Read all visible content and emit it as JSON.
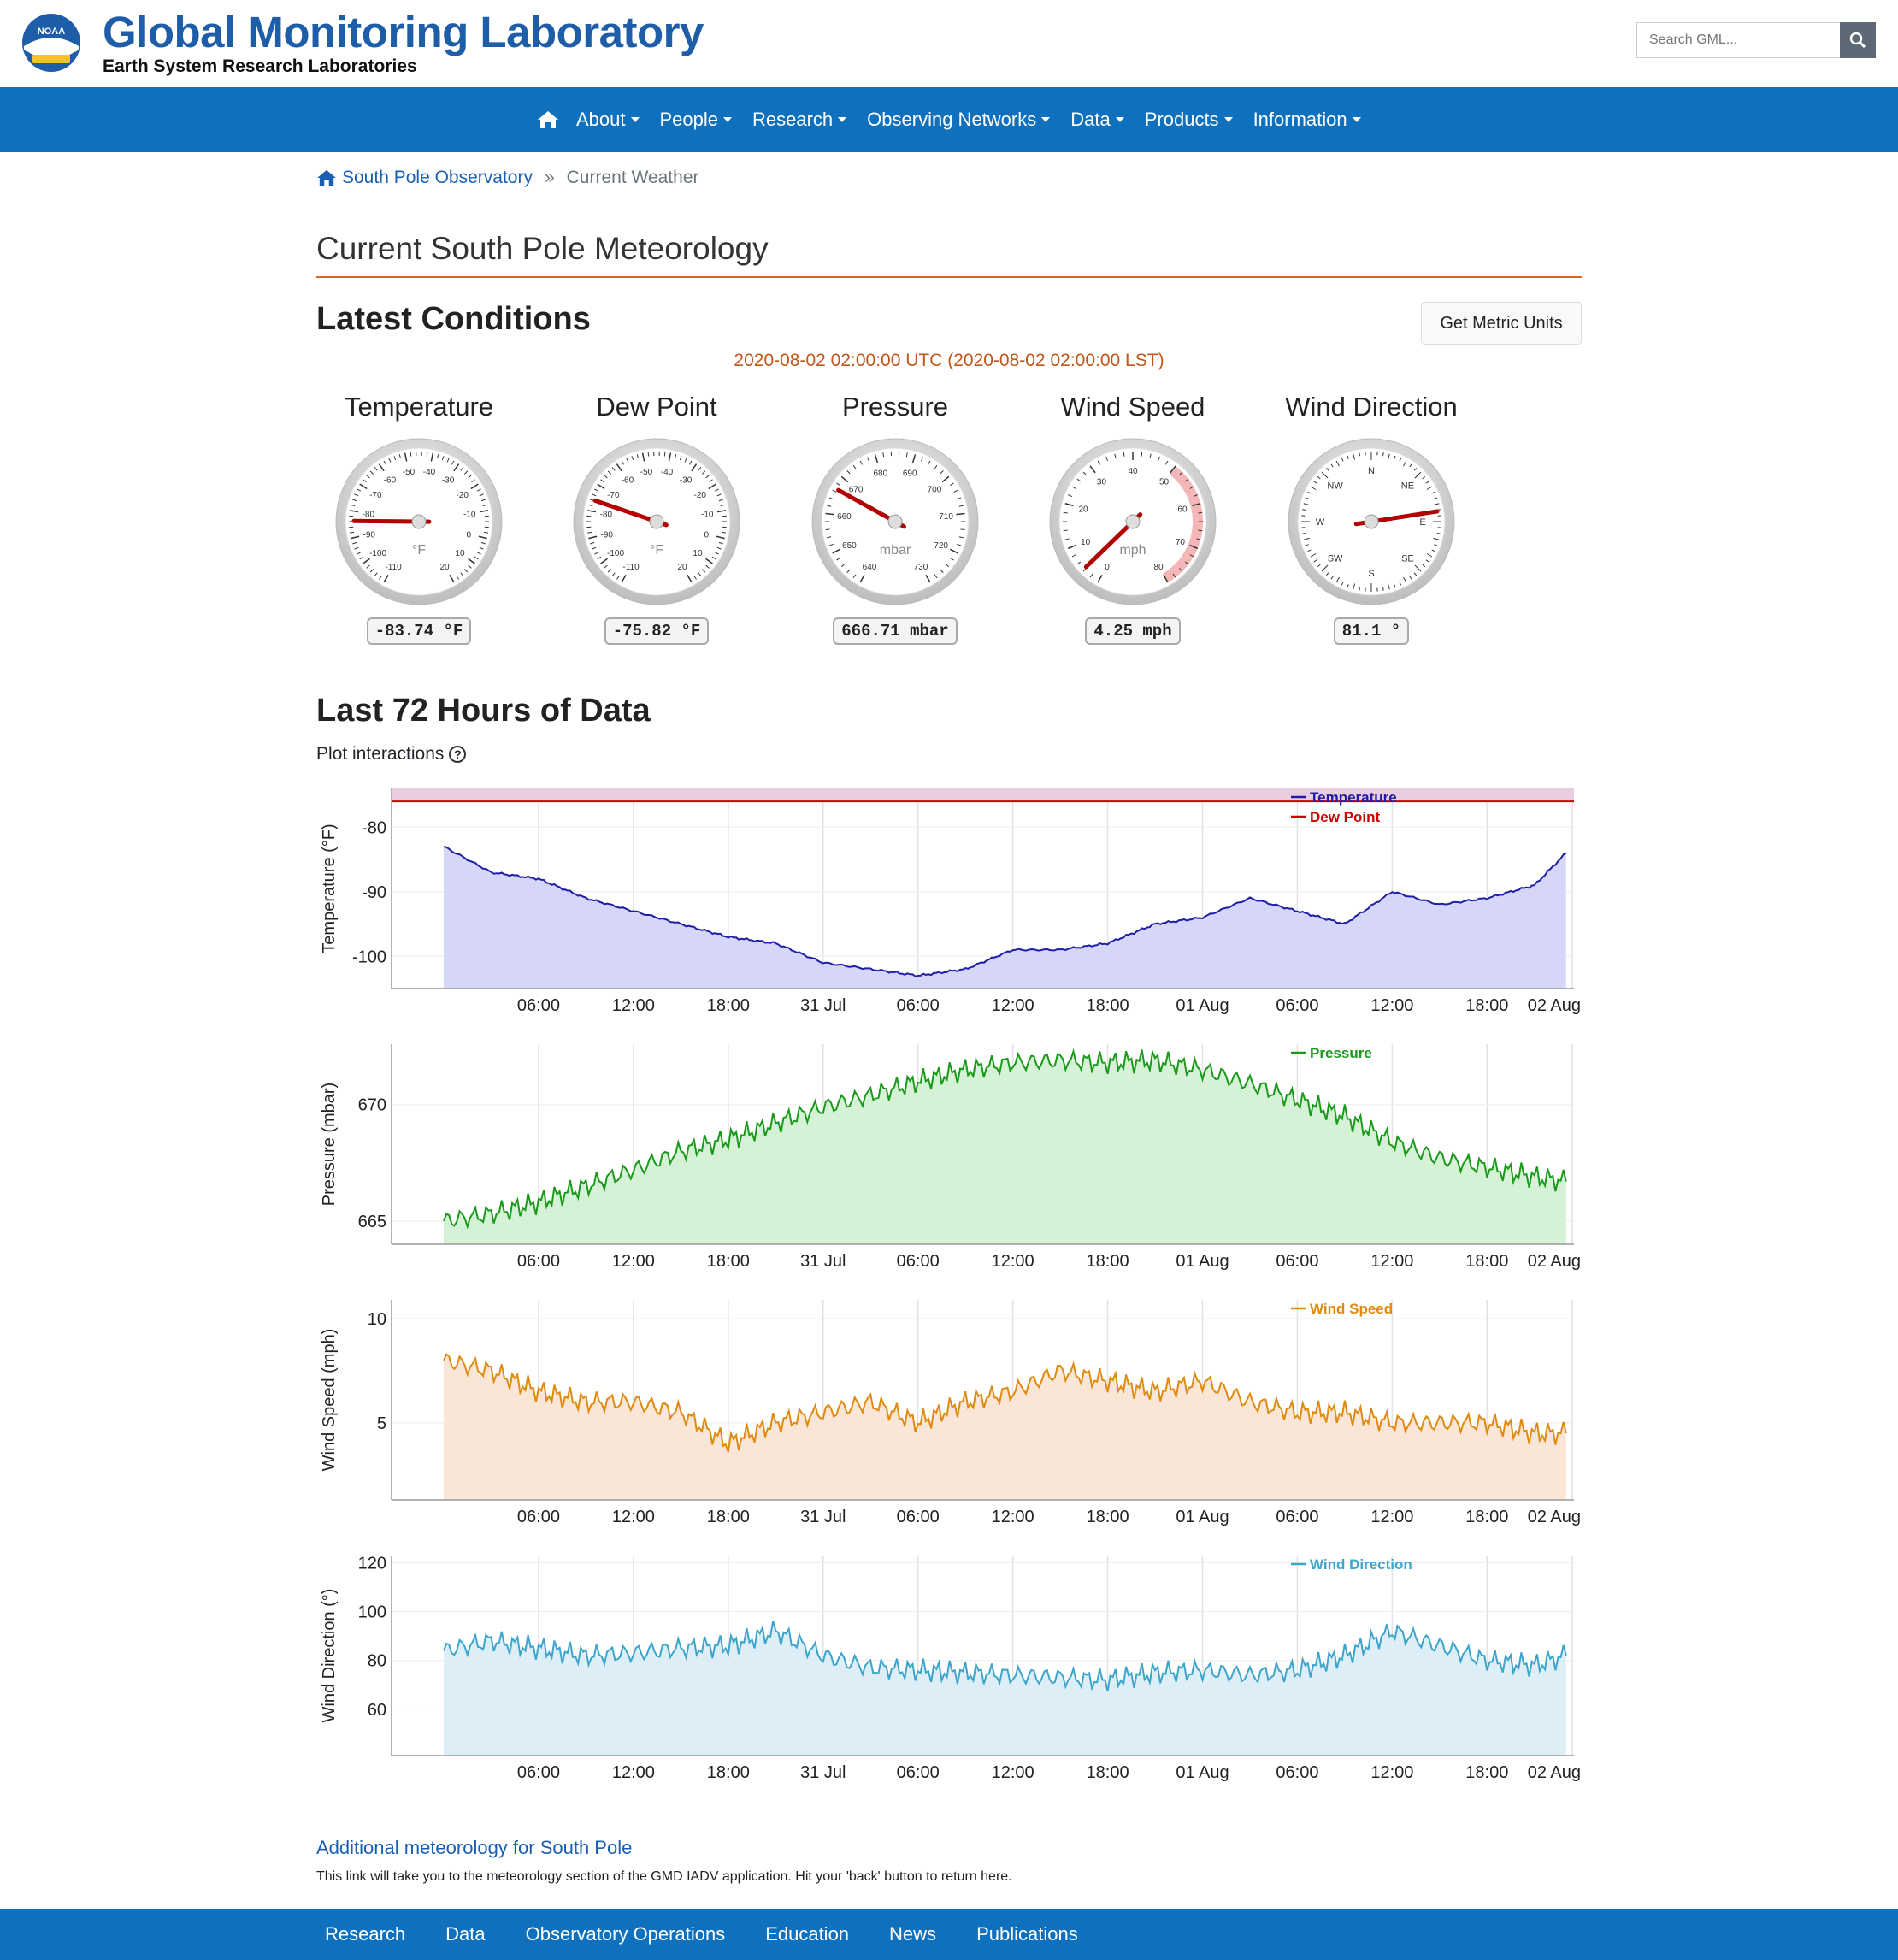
{
  "header": {
    "title": "Global Monitoring Laboratory",
    "subtitle": "Earth System Research Laboratories",
    "logo_text": "NOAA",
    "search_placeholder": "Search GML..."
  },
  "nav": {
    "items": [
      "About",
      "People",
      "Research",
      "Observing Networks",
      "Data",
      "Products",
      "Information"
    ]
  },
  "breadcrumb": {
    "home": "South Pole Observatory",
    "separator": "»",
    "current": "Current Weather"
  },
  "page": {
    "title": "Current South Pole Meteorology",
    "latest_heading": "Latest Conditions",
    "metric_button": "Get Metric Units",
    "timestamp": "2020-08-02 02:00:00 UTC (2020-08-02 02:00:00 LST)",
    "h72": "Last 72 Hours of Data",
    "plot_interactions": "Plot interactions",
    "plot_help": "?"
  },
  "gauges": [
    {
      "title": "Temperature",
      "readout": "-83.74 °F",
      "unit": "°F",
      "min": -110,
      "max": 20,
      "value": -83.74,
      "ticks": [
        "-110",
        "-100",
        "-90",
        "-80",
        "-70",
        "-60",
        "-50",
        "-40",
        "-30",
        "-20",
        "-10",
        "0",
        "10",
        "20"
      ],
      "type": "linear"
    },
    {
      "title": "Dew Point",
      "readout": "-75.82 °F",
      "unit": "°F",
      "min": -110,
      "max": 20,
      "value": -75.82,
      "ticks": [
        "-110",
        "-100",
        "-90",
        "-80",
        "-70",
        "-60",
        "-50",
        "-40",
        "-30",
        "-20",
        "-10",
        "0",
        "10",
        "20"
      ],
      "type": "linear"
    },
    {
      "title": "Pressure",
      "readout": "666.71 mbar",
      "unit": "mbar",
      "min": 640,
      "max": 730,
      "value": 666.71,
      "ticks": [
        "640",
        "650",
        "660",
        "670",
        "680",
        "690",
        "700",
        "710",
        "720",
        "730"
      ],
      "type": "linear"
    },
    {
      "title": "Wind Speed",
      "readout": "4.25 mph",
      "unit": "mph",
      "min": 0,
      "max": 80,
      "value": 4.25,
      "ticks": [
        "0",
        "10",
        "20",
        "30",
        "40",
        "50",
        "60",
        "70",
        "80"
      ],
      "type": "linear",
      "band_from": 50
    },
    {
      "title": "Wind Direction",
      "readout": "81.1 °",
      "unit": "",
      "min": 0,
      "max": 360,
      "value": 81.1,
      "ticks": [
        "N",
        "NE",
        "E",
        "SE",
        "S",
        "SW",
        "W",
        "NW"
      ],
      "type": "compass"
    }
  ],
  "x_ticks": [
    "06:00",
    "12:00",
    "18:00",
    "31 Jul",
    "06:00",
    "12:00",
    "18:00",
    "01 Aug",
    "06:00",
    "12:00",
    "18:00",
    "02 Aug"
  ],
  "chart_data": [
    {
      "type": "area",
      "ylabel": "Temperature (°F)",
      "ylim": [
        -105,
        -74
      ],
      "yticks": [
        -80,
        -90,
        -100
      ],
      "series": [
        {
          "name": "Temperature",
          "color": "#1e1ea8",
          "fill": "#d6d6f8",
          "x_hours": [
            0,
            3,
            6,
            9,
            12,
            15,
            18,
            21,
            24,
            27,
            30,
            33,
            36,
            39,
            42,
            45,
            48,
            51,
            54,
            57,
            60,
            63,
            66,
            69,
            71
          ],
          "values": [
            -83,
            -87,
            -88,
            -91,
            -93,
            -95,
            -97,
            -98,
            -101,
            -102,
            -103,
            -102,
            -99,
            -99,
            -98,
            -95,
            -94,
            -91,
            -93,
            -95,
            -90,
            -92,
            -91,
            -89,
            -84
          ]
        },
        {
          "name": "Dew Point",
          "color": "#cc0000",
          "fill": "#e8cde0",
          "x_hours": [
            0,
            71
          ],
          "values": [
            -76,
            -76
          ]
        }
      ]
    },
    {
      "type": "area",
      "ylabel": "Pressure (mbar)",
      "ylim": [
        664,
        672.6
      ],
      "yticks": [
        670,
        665
      ],
      "series": [
        {
          "name": "Pressure",
          "color": "#1a9a1a",
          "fill": "#d6f2d6",
          "x_hours": [
            0,
            3,
            6,
            9,
            12,
            15,
            18,
            21,
            24,
            27,
            30,
            33,
            36,
            39,
            42,
            45,
            48,
            51,
            54,
            57,
            60,
            63,
            66,
            69,
            71
          ],
          "values": [
            665,
            665.3,
            665.8,
            666.5,
            667.2,
            668,
            668.5,
            669.2,
            669.9,
            670.4,
            671,
            671.5,
            671.8,
            671.9,
            671.8,
            671.9,
            671.5,
            670.9,
            670.2,
            669.5,
            668.4,
            667.7,
            667.3,
            666.9,
            666.7
          ]
        }
      ]
    },
    {
      "type": "area",
      "ylabel": "Wind Speed (mph)",
      "ylim": [
        1.3,
        10.9
      ],
      "yticks": [
        10,
        5
      ],
      "series": [
        {
          "name": "Wind Speed",
          "color": "#e08a10",
          "fill": "#fae6d6",
          "x_hours": [
            0,
            3,
            6,
            9,
            12,
            15,
            18,
            21,
            24,
            27,
            30,
            33,
            36,
            39,
            42,
            45,
            48,
            51,
            54,
            57,
            60,
            63,
            66,
            69,
            71
          ],
          "values": [
            8,
            7.5,
            6.5,
            6,
            6,
            5.5,
            4,
            5,
            5.5,
            6,
            5,
            6,
            6.5,
            7.5,
            7,
            6.5,
            7,
            6,
            5.5,
            5.5,
            5,
            5,
            5,
            4.5,
            4.5
          ]
        }
      ]
    },
    {
      "type": "area",
      "ylabel": "Wind Direction (°)",
      "ylim": [
        41,
        123
      ],
      "yticks": [
        120,
        100,
        80,
        60
      ],
      "series": [
        {
          "name": "Wind Direction",
          "color": "#3da5cc",
          "fill": "#ddeef7",
          "x_hours": [
            0,
            3,
            6,
            9,
            12,
            15,
            18,
            21,
            24,
            27,
            30,
            33,
            36,
            39,
            42,
            45,
            48,
            51,
            54,
            57,
            60,
            63,
            66,
            69,
            71
          ],
          "values": [
            84,
            88,
            85,
            82,
            83,
            85,
            86,
            92,
            82,
            77,
            76,
            75,
            74,
            73,
            72,
            75,
            76,
            74,
            76,
            82,
            92,
            86,
            80,
            78,
            82
          ]
        }
      ]
    }
  ],
  "footer": {
    "addl_link": "Additional meteorology for South Pole",
    "addl_note": "This link will take you to the meteorology section of the GMD IADV application. Hit your 'back' button to return here.",
    "items": [
      "Research",
      "Data",
      "Observatory Operations",
      "Education",
      "News",
      "Publications"
    ]
  }
}
